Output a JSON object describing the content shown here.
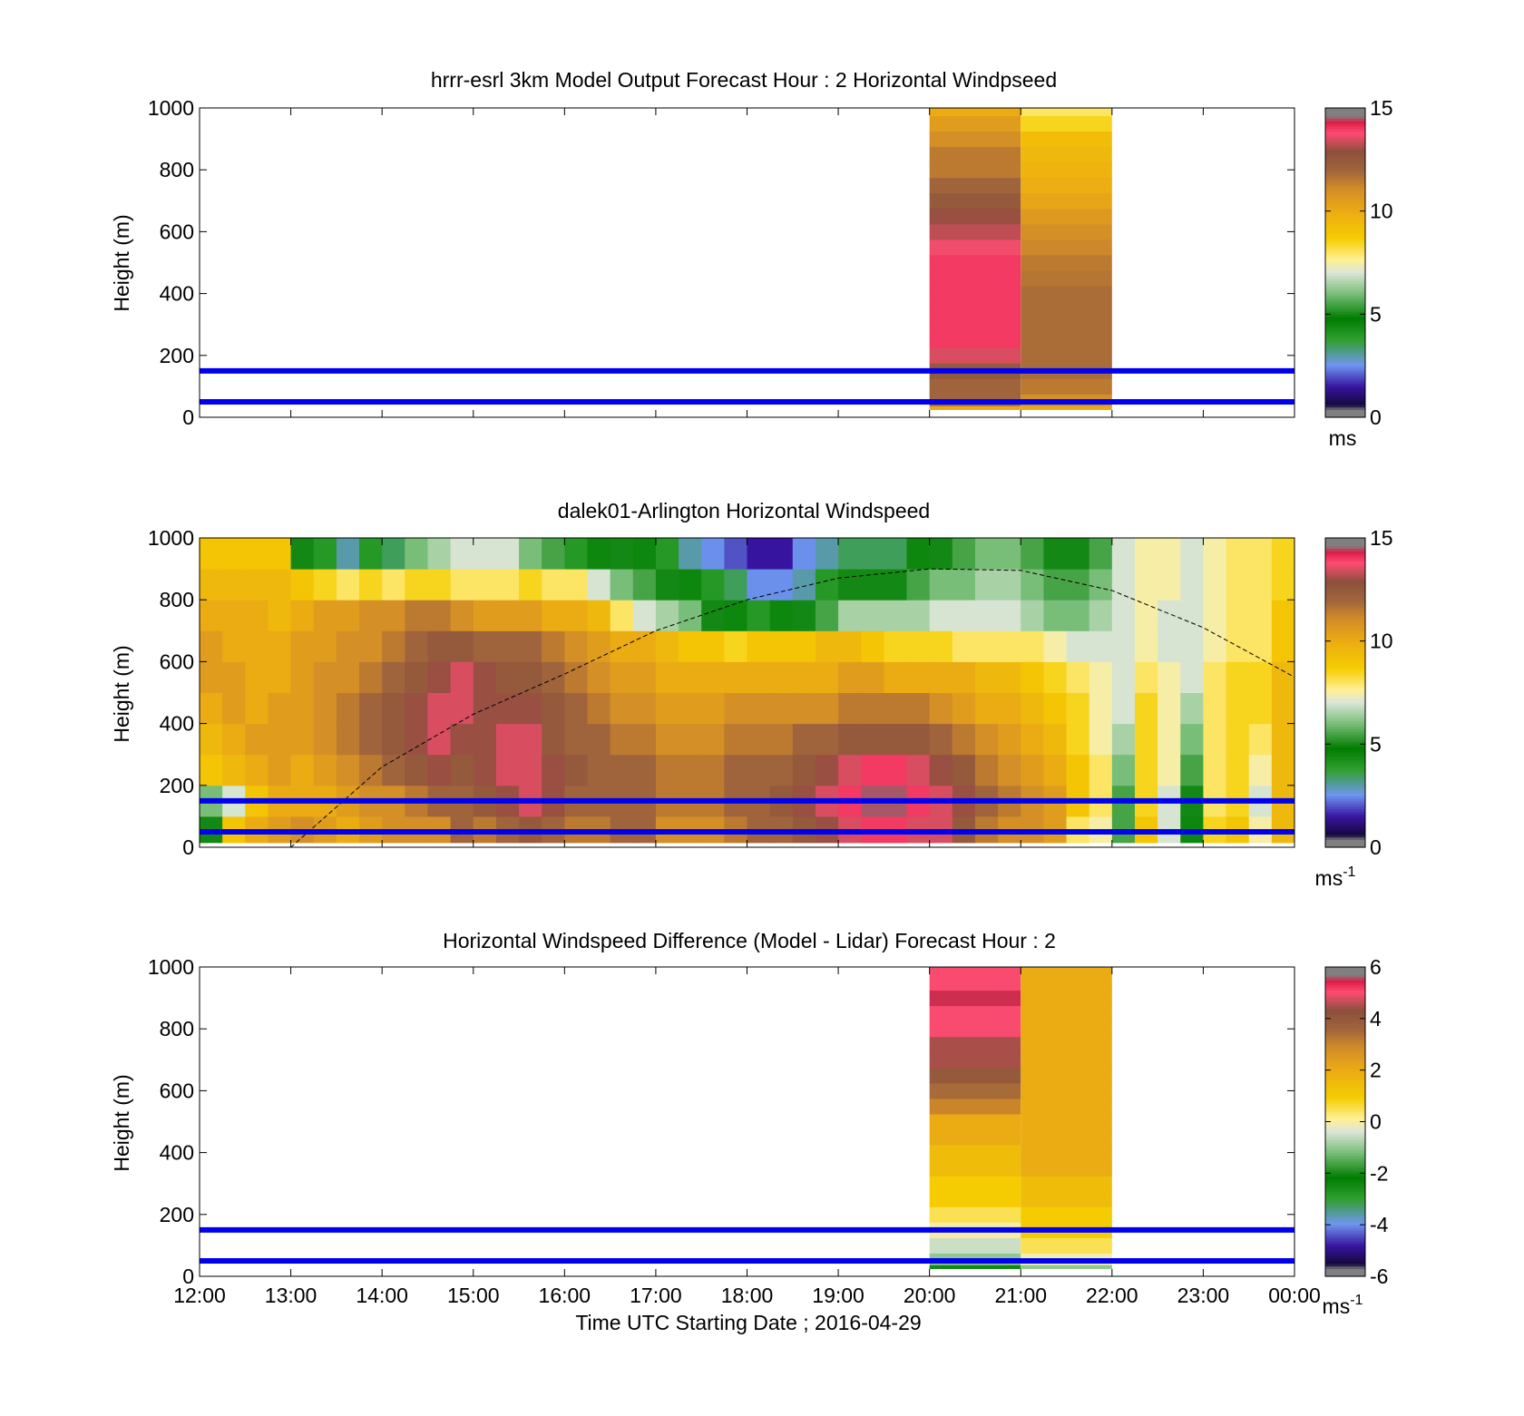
{
  "chart_data": [
    {
      "type": "heatmap",
      "title": "hrrr-esrl 3km Model Output   Forecast Hour : 2 Horizontal Windpseed",
      "ylabel": "Height (m)",
      "xlim": [
        "12:00",
        "00:00"
      ],
      "ylim": [
        0,
        1000
      ],
      "yticks": [
        0,
        200,
        400,
        600,
        800,
        1000
      ],
      "colorbar": {
        "min": 0,
        "max": 15,
        "ticks": [
          "0",
          "5",
          "10",
          "15"
        ],
        "unit": "ms"
      },
      "reference_lines_m": [
        50,
        150
      ],
      "colors": {
        "reference_line": "#0000ee"
      },
      "columns": [
        {
          "time_start": "20:00",
          "time_end": "21:00",
          "levels_m": [
            25,
            50,
            100,
            150,
            200,
            250,
            300,
            350,
            400,
            450,
            500,
            550,
            600,
            650,
            700,
            750,
            800,
            850,
            900,
            950,
            1000
          ],
          "values_ms": [
            10,
            12,
            12,
            12.5,
            13.5,
            14,
            14,
            14,
            14,
            14,
            14,
            13.7,
            13.3,
            13,
            12.5,
            12,
            11.5,
            11.5,
            11,
            10.5,
            10
          ]
        },
        {
          "time_start": "21:00",
          "time_end": "22:00",
          "levels_m": [
            25,
            50,
            100,
            150,
            200,
            250,
            300,
            350,
            400,
            450,
            500,
            550,
            600,
            650,
            700,
            750,
            800,
            850,
            900,
            950,
            1000
          ],
          "values_ms": [
            10,
            11,
            11.5,
            11.8,
            11.8,
            11.8,
            11.8,
            11.8,
            11.8,
            11.6,
            11.5,
            11.2,
            11,
            10.6,
            10.2,
            9.9,
            9.7,
            9.5,
            9.3,
            8.5,
            8
          ]
        }
      ]
    },
    {
      "type": "heatmap",
      "title": "dalek01-Arlington  Horizontal Windspeed",
      "ylabel": "Height (m)",
      "xlim": [
        "12:00",
        "00:00"
      ],
      "ylim": [
        0,
        1000
      ],
      "yticks": [
        0,
        200,
        400,
        600,
        800,
        1000
      ],
      "colorbar": {
        "min": 0,
        "max": 15,
        "ticks": [
          "0",
          "5",
          "10",
          "15"
        ],
        "unit": "ms",
        "unit_exponent": "-1"
      },
      "reference_lines_m": [
        50,
        150
      ],
      "boundary_curve": {
        "style": "dashed",
        "times": [
          "13:00",
          "14:00",
          "15:00",
          "16:00",
          "17:00",
          "18:00",
          "19:00",
          "20:00",
          "21:00",
          "22:00",
          "23:00",
          "00:00"
        ],
        "heights_m": [
          0,
          260,
          430,
          560,
          700,
          800,
          870,
          900,
          895,
          830,
          710,
          550
        ]
      },
      "time_hours": [
        12.0,
        12.25,
        12.5,
        12.75,
        13.0,
        13.25,
        13.5,
        13.75,
        14.0,
        14.25,
        14.5,
        14.75,
        15.0,
        15.25,
        15.5,
        15.75,
        16.0,
        16.25,
        16.5,
        16.75,
        17.0,
        17.25,
        17.5,
        17.75,
        18.0,
        18.25,
        18.5,
        18.75,
        19.0,
        19.25,
        19.5,
        19.75,
        20.0,
        20.25,
        20.5,
        20.75,
        21.0,
        21.25,
        21.5,
        21.75,
        22.0,
        22.25,
        22.5,
        22.75,
        23.0,
        23.25,
        23.5,
        23.75
      ],
      "levels_m": [
        50,
        150,
        250,
        350,
        450,
        550,
        650,
        750,
        850,
        950
      ],
      "values_ms": [
        [
          5,
          9,
          10,
          10.5,
          11,
          10.5,
          10,
          10.5,
          11,
          11,
          11,
          12,
          11.5,
          12,
          12.5,
          12,
          11.5,
          11.5,
          12,
          12,
          11,
          11,
          11,
          11.5,
          12,
          12,
          12.5,
          13,
          13.5,
          14,
          14,
          13.5,
          13.5,
          12.5,
          11.5,
          11,
          11,
          10.5,
          8,
          7.5,
          5.5,
          9,
          7,
          4.5,
          8.5,
          9,
          7.5,
          9.5
        ],
        [
          6,
          7,
          9,
          10,
          10,
          10,
          10.5,
          11,
          11,
          11.5,
          12,
          12,
          12.5,
          13,
          13.5,
          13,
          12,
          12,
          12,
          12,
          11.5,
          11.5,
          11.5,
          12,
          12,
          12.5,
          13,
          13.5,
          14,
          14.5,
          14.5,
          14,
          13.5,
          13,
          12,
          11.5,
          11,
          10.5,
          9,
          8,
          5.5,
          8.5,
          7,
          5,
          8,
          8.5,
          7,
          9.5
        ],
        [
          9,
          9.5,
          10,
          10.5,
          10,
          10.5,
          11,
          11.5,
          12,
          12.5,
          13,
          12.5,
          13,
          13.5,
          13.5,
          13,
          12.5,
          12,
          12,
          12,
          11.5,
          11.5,
          11.5,
          12,
          12,
          12,
          12.5,
          13,
          13.5,
          14,
          14,
          13.5,
          13,
          12.5,
          11.5,
          11,
          10.5,
          10,
          9,
          8,
          6,
          8.5,
          7.5,
          5.5,
          8,
          8.5,
          7.5,
          9.5
        ],
        [
          9.5,
          10,
          10.5,
          10.5,
          10.5,
          11,
          11.5,
          12,
          12.5,
          13,
          13.5,
          13,
          13,
          13.5,
          13.5,
          12.5,
          12,
          12,
          11.5,
          11.5,
          11,
          11,
          11,
          11.5,
          11.5,
          11.5,
          12,
          12,
          12.5,
          12.5,
          12.5,
          12.5,
          12,
          11.5,
          11,
          10.5,
          10,
          9.5,
          8.5,
          7.5,
          6.5,
          8.5,
          7.5,
          6,
          8,
          8.5,
          8,
          9.5
        ],
        [
          10,
          10.5,
          10,
          10.5,
          10.5,
          11,
          11.5,
          12,
          12.5,
          13,
          13.5,
          13.5,
          13,
          13,
          13,
          12.5,
          12,
          11.5,
          11,
          11,
          10.5,
          10.5,
          10.5,
          11,
          11,
          11,
          11,
          11,
          11.5,
          11.5,
          11.5,
          11.5,
          11,
          10.5,
          10,
          10,
          9.5,
          9,
          8.5,
          7.5,
          7,
          8.5,
          7.5,
          6.5,
          8,
          8.5,
          8.5,
          9.5
        ],
        [
          10.5,
          10.5,
          10,
          10,
          10.5,
          11,
          11,
          11.5,
          12,
          12.5,
          13,
          13.5,
          13,
          12.5,
          12.5,
          12,
          11.5,
          11,
          10.5,
          10.5,
          10,
          10,
          10,
          10,
          10,
          10,
          10,
          10,
          10.5,
          10.5,
          10,
          10,
          10,
          10,
          9.5,
          9.5,
          9,
          8.5,
          8,
          7.5,
          7,
          8,
          7.5,
          7,
          8,
          8.5,
          8.5,
          9.5
        ],
        [
          10.5,
          10,
          10,
          10,
          10.5,
          10.5,
          11,
          11,
          11.5,
          12,
          12.5,
          12.5,
          12,
          12,
          12,
          11.5,
          11,
          10.5,
          10,
          10,
          9.5,
          9,
          9,
          8.5,
          9,
          9,
          9,
          9.5,
          9.5,
          9,
          8.5,
          8.5,
          8.5,
          8,
          8,
          8,
          8,
          7.5,
          7,
          7,
          7,
          7.5,
          7,
          7,
          7.5,
          8,
          8,
          9
        ],
        [
          10,
          10,
          10,
          9.5,
          10,
          10.5,
          10.5,
          11,
          11,
          11.5,
          11.5,
          11,
          10.5,
          10.5,
          10.5,
          10,
          10,
          9.5,
          8,
          7,
          6.5,
          6,
          5,
          4.5,
          4,
          4.5,
          5,
          5.5,
          6.5,
          6.5,
          6.5,
          6.5,
          7,
          7,
          7,
          7,
          6.5,
          6,
          6,
          6.5,
          7,
          7.5,
          7,
          7,
          7.5,
          8,
          8,
          9
        ],
        [
          9.5,
          9.5,
          9.5,
          9.5,
          9,
          8.5,
          8,
          8.5,
          8,
          8.5,
          8.5,
          8,
          8,
          8,
          8.5,
          8,
          8,
          7,
          6,
          5.5,
          5,
          4.5,
          4,
          3.5,
          2.5,
          2.5,
          3,
          4,
          5,
          5,
          5,
          5.5,
          6,
          6,
          6.5,
          6.5,
          6,
          5.5,
          5.5,
          6,
          7,
          7.5,
          7.5,
          7,
          7.5,
          8,
          8,
          8.5
        ],
        [
          9,
          9,
          9,
          9,
          5,
          4,
          3,
          4,
          3.5,
          6,
          6.5,
          7,
          7,
          7,
          6,
          5.5,
          4,
          4.5,
          5,
          4.5,
          4,
          3,
          2.5,
          2,
          1.5,
          1.5,
          2.5,
          3,
          3.5,
          3.5,
          3.5,
          4.5,
          5,
          5.5,
          6,
          6,
          5.5,
          5,
          5,
          5.5,
          7,
          7.5,
          7.5,
          7,
          7.5,
          8,
          8,
          8.5
        ]
      ]
    },
    {
      "type": "heatmap",
      "title": "Horizontal Windspeed Difference (Model - Lidar) Forecast Hour : 2",
      "xlabel": "Time UTC  Starting Date ; 2016-04-29",
      "ylabel": "Height (m)",
      "xticks": [
        "12:00",
        "13:00",
        "14:00",
        "15:00",
        "16:00",
        "17:00",
        "18:00",
        "19:00",
        "20:00",
        "21:00",
        "22:00",
        "23:00",
        "00:00"
      ],
      "ylim": [
        0,
        1000
      ],
      "yticks": [
        0,
        200,
        400,
        600,
        800,
        1000
      ],
      "colorbar": {
        "min": -6,
        "max": 6,
        "ticks": [
          "6",
          "4",
          "2",
          "0",
          "-2",
          "-4",
          "-6"
        ],
        "unit": "ms",
        "unit_exponent": "-1"
      },
      "reference_lines_m": [
        50,
        150
      ],
      "columns": [
        {
          "time_start": "20:00",
          "time_end": "21:00",
          "levels_m": [
            25,
            50,
            100,
            150,
            200,
            250,
            300,
            350,
            400,
            450,
            500,
            550,
            600,
            650,
            700,
            750,
            800,
            850,
            900,
            950,
            1000
          ],
          "values_ms": [
            -2,
            -1,
            -0.5,
            0,
            0.5,
            1,
            1,
            1.5,
            1.5,
            2,
            2,
            3,
            3.5,
            4,
            4.5,
            4.5,
            5,
            5,
            5.5,
            5,
            5
          ]
        },
        {
          "time_start": "21:00",
          "time_end": "22:00",
          "levels_m": [
            25,
            50,
            100,
            150,
            200,
            250,
            300,
            350,
            400,
            450,
            500,
            550,
            600,
            650,
            700,
            750,
            800,
            850,
            900,
            950,
            1000
          ],
          "values_ms": [
            -1,
            0,
            0.5,
            1,
            1,
            1.5,
            1.5,
            2,
            2,
            2,
            2,
            2,
            2,
            2,
            2,
            2,
            2,
            2,
            2,
            2,
            2
          ]
        }
      ]
    }
  ]
}
